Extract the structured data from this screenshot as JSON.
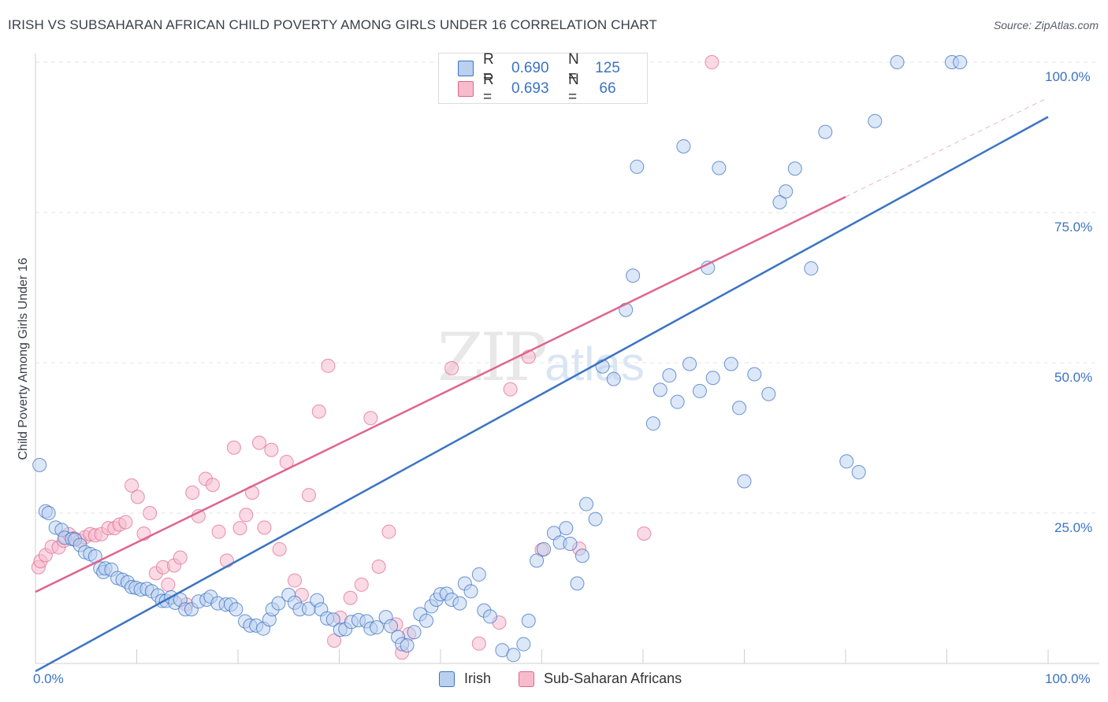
{
  "title": "IRISH VS SUBSAHARAN AFRICAN CHILD POVERTY AMONG GIRLS UNDER 16 CORRELATION CHART",
  "source": "Source: ZipAtlas.com",
  "watermark": {
    "zip": "ZIP",
    "atlas": "atlas"
  },
  "colors": {
    "irish": "#3b73c4",
    "irish_fill": "#b9d0ef",
    "subsaharan": "#e0648c",
    "subsaharan_fill": "#f6bccd",
    "grid": "#e3e3e3",
    "axis_text": "#3b73c4"
  },
  "legend_top": {
    "rows": [
      {
        "r_label": "R =",
        "r_value": "0.690",
        "n_label": "N =",
        "n_value": "125"
      },
      {
        "r_label": "R =",
        "r_value": "0.693",
        "n_label": "N =",
        "n_value": "66"
      }
    ]
  },
  "legend_bottom": {
    "irish": "Irish",
    "subsaharan": "Sub-Saharan Africans"
  },
  "chart_data": {
    "type": "scatter",
    "title": "IRISH VS SUBSAHARAN AFRICAN CHILD POVERTY AMONG GIRLS UNDER 16 CORRELATION CHART",
    "xlabel": "",
    "ylabel": "Child Poverty Among Girls Under 16",
    "xlim": [
      0,
      100
    ],
    "ylim": [
      0,
      100
    ],
    "x_tick_labels": [
      "0.0%",
      "100.0%"
    ],
    "y_tick_labels": [
      "25.0%",
      "50.0%",
      "75.0%",
      "100.0%"
    ],
    "y_ticks": [
      25,
      50,
      75,
      100
    ],
    "series": [
      {
        "name": "Irish",
        "r": 0.69,
        "n": 125,
        "trend": {
          "x0": 0,
          "y0": -1.3,
          "x1": 100,
          "y1": 90.9
        },
        "points": [
          [
            0.4,
            33.0
          ],
          [
            1.0,
            25.3
          ],
          [
            1.3,
            25.0
          ],
          [
            2.0,
            22.6
          ],
          [
            2.6,
            22.2
          ],
          [
            2.9,
            20.9
          ],
          [
            3.6,
            20.7
          ],
          [
            3.9,
            20.6
          ],
          [
            4.4,
            19.7
          ],
          [
            4.9,
            18.5
          ],
          [
            5.4,
            18.2
          ],
          [
            5.9,
            17.8
          ],
          [
            6.4,
            15.8
          ],
          [
            6.7,
            15.2
          ],
          [
            6.9,
            15.8
          ],
          [
            7.5,
            15.6
          ],
          [
            8.1,
            14.2
          ],
          [
            8.6,
            13.9
          ],
          [
            9.1,
            13.5
          ],
          [
            9.5,
            12.7
          ],
          [
            9.9,
            12.6
          ],
          [
            10.4,
            12.3
          ],
          [
            11.0,
            12.4
          ],
          [
            11.5,
            12.0
          ],
          [
            12.1,
            11.3
          ],
          [
            12.5,
            10.4
          ],
          [
            12.9,
            10.4
          ],
          [
            13.4,
            11.0
          ],
          [
            13.8,
            10.1
          ],
          [
            14.3,
            10.6
          ],
          [
            14.8,
            9.0
          ],
          [
            15.4,
            9.0
          ],
          [
            16.1,
            10.3
          ],
          [
            16.9,
            10.6
          ],
          [
            17.3,
            11.1
          ],
          [
            18.0,
            10.0
          ],
          [
            18.8,
            9.8
          ],
          [
            19.3,
            9.8
          ],
          [
            19.8,
            9.0
          ],
          [
            20.7,
            7.0
          ],
          [
            21.2,
            6.3
          ],
          [
            21.8,
            6.3
          ],
          [
            22.5,
            5.8
          ],
          [
            23.1,
            7.3
          ],
          [
            23.4,
            9.0
          ],
          [
            24.0,
            10.0
          ],
          [
            25.0,
            11.4
          ],
          [
            25.6,
            10.1
          ],
          [
            26.1,
            9.0
          ],
          [
            27.0,
            9.1
          ],
          [
            27.8,
            10.5
          ],
          [
            28.2,
            9.0
          ],
          [
            28.8,
            7.5
          ],
          [
            29.4,
            7.3
          ],
          [
            30.1,
            5.6
          ],
          [
            30.6,
            5.7
          ],
          [
            31.2,
            6.9
          ],
          [
            31.9,
            7.2
          ],
          [
            32.7,
            7.0
          ],
          [
            33.1,
            5.8
          ],
          [
            33.7,
            6.0
          ],
          [
            34.6,
            7.7
          ],
          [
            35.1,
            6.2
          ],
          [
            35.8,
            4.4
          ],
          [
            36.2,
            3.2
          ],
          [
            36.7,
            3.0
          ],
          [
            37.4,
            5.2
          ],
          [
            38.0,
            8.2
          ],
          [
            38.6,
            7.1
          ],
          [
            39.1,
            9.5
          ],
          [
            39.6,
            10.6
          ],
          [
            40.0,
            11.5
          ],
          [
            40.6,
            11.6
          ],
          [
            41.1,
            10.6
          ],
          [
            41.9,
            10.0
          ],
          [
            42.4,
            13.3
          ],
          [
            43.0,
            12.0
          ],
          [
            43.8,
            14.8
          ],
          [
            44.3,
            8.8
          ],
          [
            44.9,
            7.8
          ],
          [
            46.1,
            2.2
          ],
          [
            47.2,
            1.4
          ],
          [
            48.2,
            3.2
          ],
          [
            48.7,
            7.1
          ],
          [
            49.5,
            17.1
          ],
          [
            50.2,
            19.0
          ],
          [
            51.2,
            21.7
          ],
          [
            51.8,
            20.1
          ],
          [
            52.4,
            22.5
          ],
          [
            52.8,
            19.9
          ],
          [
            53.5,
            13.3
          ],
          [
            54.0,
            17.9
          ],
          [
            54.4,
            26.5
          ],
          [
            55.3,
            24.0
          ],
          [
            56.0,
            49.4
          ],
          [
            57.1,
            47.3
          ],
          [
            58.3,
            58.8
          ],
          [
            59.0,
            64.5
          ],
          [
            59.4,
            82.6
          ],
          [
            61.0,
            39.9
          ],
          [
            61.7,
            45.5
          ],
          [
            62.6,
            47.9
          ],
          [
            63.4,
            43.5
          ],
          [
            64.0,
            86.0
          ],
          [
            64.6,
            49.8
          ],
          [
            65.6,
            45.3
          ],
          [
            66.4,
            65.8
          ],
          [
            66.9,
            47.5
          ],
          [
            67.5,
            82.4
          ],
          [
            68.7,
            49.8
          ],
          [
            69.5,
            42.5
          ],
          [
            70.0,
            30.3
          ],
          [
            71.0,
            48.1
          ],
          [
            72.4,
            44.8
          ],
          [
            73.5,
            76.7
          ],
          [
            74.1,
            78.5
          ],
          [
            75.0,
            82.3
          ],
          [
            76.6,
            65.7
          ],
          [
            78.0,
            88.4
          ],
          [
            80.1,
            33.6
          ],
          [
            81.3,
            31.8
          ],
          [
            82.9,
            90.2
          ],
          [
            85.1,
            100.0
          ],
          [
            90.5,
            100.0
          ],
          [
            91.3,
            100.0
          ]
        ]
      },
      {
        "name": "Sub-Saharan Africans",
        "r": 0.693,
        "n": 66,
        "trend": {
          "x0": 0,
          "y0": 11.9,
          "x1": 80,
          "y1": 77.6
        },
        "trend_dashed": {
          "x0": 80,
          "y0": 77.6,
          "x1": 100,
          "y1": 94.1
        },
        "points": [
          [
            0.3,
            16.0
          ],
          [
            0.5,
            17.0
          ],
          [
            1.0,
            18.0
          ],
          [
            1.6,
            19.4
          ],
          [
            2.3,
            19.3
          ],
          [
            2.8,
            20.4
          ],
          [
            3.3,
            21.5
          ],
          [
            3.8,
            20.8
          ],
          [
            4.4,
            20.4
          ],
          [
            4.9,
            21.0
          ],
          [
            5.4,
            21.5
          ],
          [
            5.9,
            21.3
          ],
          [
            6.5,
            21.5
          ],
          [
            7.2,
            22.5
          ],
          [
            7.8,
            22.5
          ],
          [
            8.3,
            23.1
          ],
          [
            8.9,
            23.5
          ],
          [
            9.5,
            29.6
          ],
          [
            10.1,
            27.7
          ],
          [
            10.7,
            21.6
          ],
          [
            11.3,
            25.0
          ],
          [
            11.9,
            15.0
          ],
          [
            12.6,
            16.0
          ],
          [
            13.1,
            13.1
          ],
          [
            13.7,
            16.3
          ],
          [
            14.3,
            17.6
          ],
          [
            14.9,
            9.8
          ],
          [
            15.5,
            28.4
          ],
          [
            16.1,
            24.5
          ],
          [
            16.8,
            30.7
          ],
          [
            17.5,
            29.7
          ],
          [
            18.1,
            21.9
          ],
          [
            18.9,
            17.1
          ],
          [
            19.6,
            35.9
          ],
          [
            20.2,
            22.5
          ],
          [
            20.8,
            24.7
          ],
          [
            21.4,
            28.4
          ],
          [
            22.1,
            36.7
          ],
          [
            22.6,
            22.6
          ],
          [
            23.3,
            35.5
          ],
          [
            24.1,
            19.0
          ],
          [
            24.8,
            33.5
          ],
          [
            25.6,
            13.8
          ],
          [
            26.3,
            11.4
          ],
          [
            27.0,
            28.0
          ],
          [
            28.0,
            41.9
          ],
          [
            28.9,
            49.5
          ],
          [
            29.5,
            3.8
          ],
          [
            30.1,
            7.6
          ],
          [
            31.1,
            10.9
          ],
          [
            32.2,
            13.1
          ],
          [
            33.1,
            40.8
          ],
          [
            33.9,
            16.1
          ],
          [
            34.9,
            21.9
          ],
          [
            35.6,
            6.5
          ],
          [
            36.2,
            1.8
          ],
          [
            36.9,
            4.9
          ],
          [
            41.1,
            49.1
          ],
          [
            43.8,
            3.3
          ],
          [
            45.8,
            6.8
          ],
          [
            46.9,
            45.6
          ],
          [
            48.7,
            51.0
          ],
          [
            50.0,
            18.9
          ],
          [
            53.7,
            19.1
          ],
          [
            60.1,
            21.6
          ],
          [
            66.8,
            100.0
          ]
        ]
      }
    ]
  }
}
